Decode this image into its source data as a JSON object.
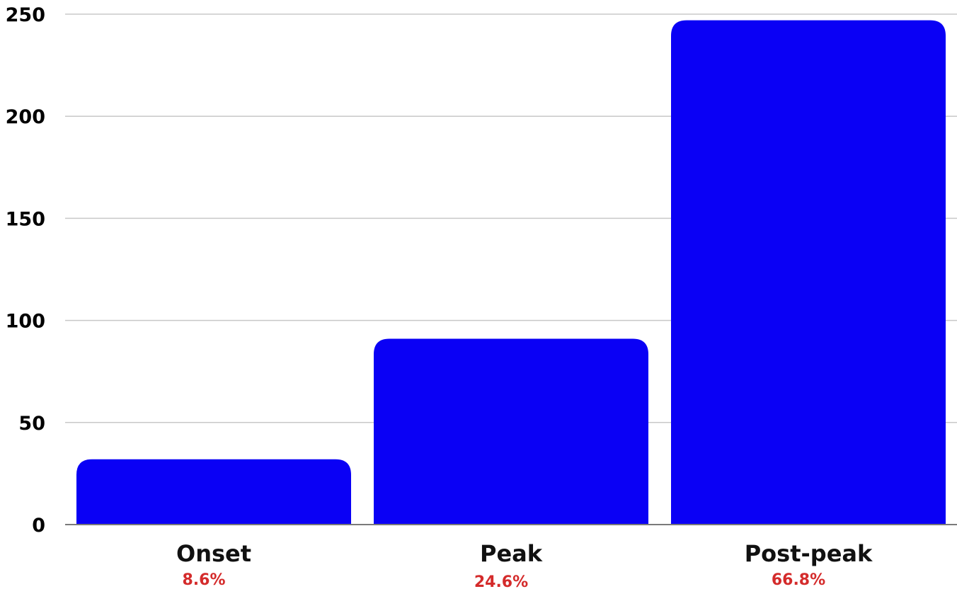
{
  "chart_data": {
    "type": "bar",
    "categories": [
      "Onset",
      "Peak",
      "Post-peak"
    ],
    "values": [
      32,
      91,
      247
    ],
    "percent_labels": [
      "8.6%",
      "24.6%",
      "66.8%"
    ],
    "y_ticks": [
      "0",
      "50",
      "100",
      "150",
      "200",
      "250"
    ],
    "ylim": [
      0,
      250
    ],
    "grid": true,
    "legend": "none",
    "bar_color": "#0a00f5",
    "percent_color": "#d42b2b"
  }
}
